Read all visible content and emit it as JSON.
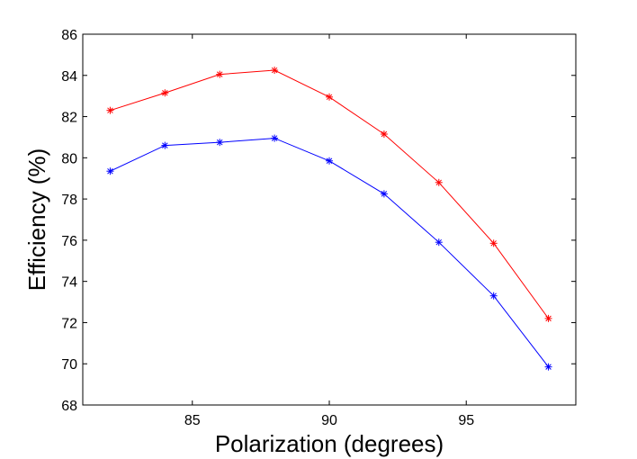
{
  "chart_data": {
    "type": "line",
    "title": "",
    "xlabel": "Polarization (degrees)",
    "ylabel": "Efficiency (%)",
    "xlim": [
      81,
      99
    ],
    "ylim": [
      68,
      86
    ],
    "xticks": [
      85,
      90,
      95
    ],
    "yticks": [
      68,
      70,
      72,
      74,
      76,
      78,
      80,
      82,
      84,
      86
    ],
    "grid": false,
    "legend": "none",
    "marker": "asterisk",
    "series": [
      {
        "name": "red series",
        "color": "#ff0000",
        "x": [
          82,
          84,
          86,
          88,
          90,
          92,
          94,
          96,
          98
        ],
        "y": [
          82.3,
          83.15,
          84.05,
          84.25,
          82.95,
          81.15,
          78.8,
          75.85,
          72.2
        ]
      },
      {
        "name": "blue series",
        "color": "#0000ff",
        "x": [
          82,
          84,
          86,
          88,
          90,
          92,
          94,
          96,
          98
        ],
        "y": [
          79.35,
          80.6,
          80.75,
          80.95,
          79.85,
          78.25,
          75.9,
          73.3,
          69.85
        ]
      }
    ]
  }
}
